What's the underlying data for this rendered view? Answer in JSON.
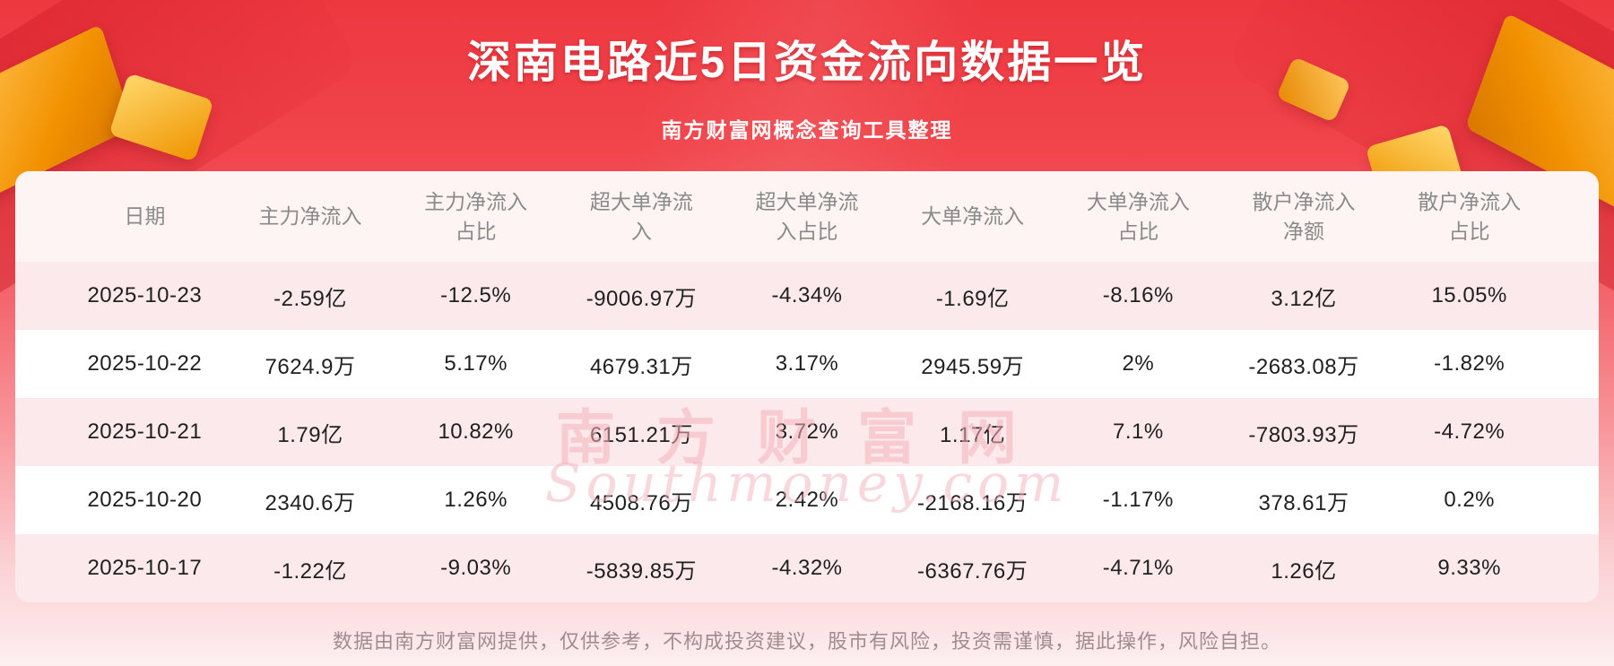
{
  "header": {
    "title": "深南电路近5日资金流向数据一览",
    "subtitle": "南方财富网概念查询工具整理"
  },
  "table": {
    "columns": [
      "日期",
      "主力净流入",
      "主力净流入\n占比",
      "超大单净流\n入",
      "超大单净流\n入占比",
      "大单净流入",
      "大单净流入\n占比",
      "散户净流入\n净额",
      "散户净流入\n占比"
    ],
    "rows": [
      [
        "2025-10-23",
        "-2.59亿",
        "-12.5%",
        "-9006.97万",
        "-4.34%",
        "-1.69亿",
        "-8.16%",
        "3.12亿",
        "15.05%"
      ],
      [
        "2025-10-22",
        "7624.9万",
        "5.17%",
        "4679.31万",
        "3.17%",
        "2945.59万",
        "2%",
        "-2683.08万",
        "-1.82%"
      ],
      [
        "2025-10-21",
        "1.79亿",
        "10.82%",
        "6151.21万",
        "3.72%",
        "1.17亿",
        "7.1%",
        "-7803.93万",
        "-4.72%"
      ],
      [
        "2025-10-20",
        "2340.6万",
        "1.26%",
        "4508.76万",
        "2.42%",
        "-2168.16万",
        "-1.17%",
        "378.61万",
        "0.2%"
      ],
      [
        "2025-10-17",
        "-1.22亿",
        "-9.03%",
        "-5839.85万",
        "-4.32%",
        "-6367.76万",
        "-4.71%",
        "1.26亿",
        "9.33%"
      ]
    ]
  },
  "chart_data": {
    "type": "table",
    "title": "深南电路近5日资金流向数据一览",
    "subtitle": "南方财富网概念查询工具整理",
    "columns": [
      "日期",
      "主力净流入",
      "主力净流入占比",
      "超大单净流入",
      "超大单净流入占比",
      "大单净流入",
      "大单净流入占比",
      "散户净流入净额",
      "散户净流入占比"
    ],
    "rows": [
      [
        "2025-10-23",
        "-2.59亿",
        "-12.5%",
        "-9006.97万",
        "-4.34%",
        "-1.69亿",
        "-8.16%",
        "3.12亿",
        "15.05%"
      ],
      [
        "2025-10-22",
        "7624.9万",
        "5.17%",
        "4679.31万",
        "3.17%",
        "2945.59万",
        "2%",
        "-2683.08万",
        "-1.82%"
      ],
      [
        "2025-10-21",
        "1.79亿",
        "10.82%",
        "6151.21万",
        "3.72%",
        "1.17亿",
        "7.1%",
        "-7803.93万",
        "-4.72%"
      ],
      [
        "2025-10-20",
        "2340.6万",
        "1.26%",
        "4508.76万",
        "2.42%",
        "-2168.16万",
        "-1.17%",
        "378.61万",
        "0.2%"
      ],
      [
        "2025-10-17",
        "-1.22亿",
        "-9.03%",
        "-5839.85万",
        "-4.32%",
        "-6367.76万",
        "-4.71%",
        "1.26亿",
        "9.33%"
      ]
    ]
  },
  "watermark": {
    "cn": "南方财富网",
    "en": "Southmoney.com"
  },
  "footer": {
    "disclaimer": "数据由南方财富网提供，仅供参考，不构成投资建议，股市有风险，投资需谨慎，据此操作，风险自担。"
  },
  "colors": {
    "banner_red": "#ee3840",
    "banner_fade_pink": "#fdeff0",
    "row_pink": "#fce9eb",
    "row_white": "#ffffff",
    "header_text": "#8a8a8a",
    "cell_text": "#1f1f1f",
    "gold_decoration": "#f29100",
    "watermark_pink": "#f2b2ba",
    "footer_text": "#a18b8e"
  }
}
